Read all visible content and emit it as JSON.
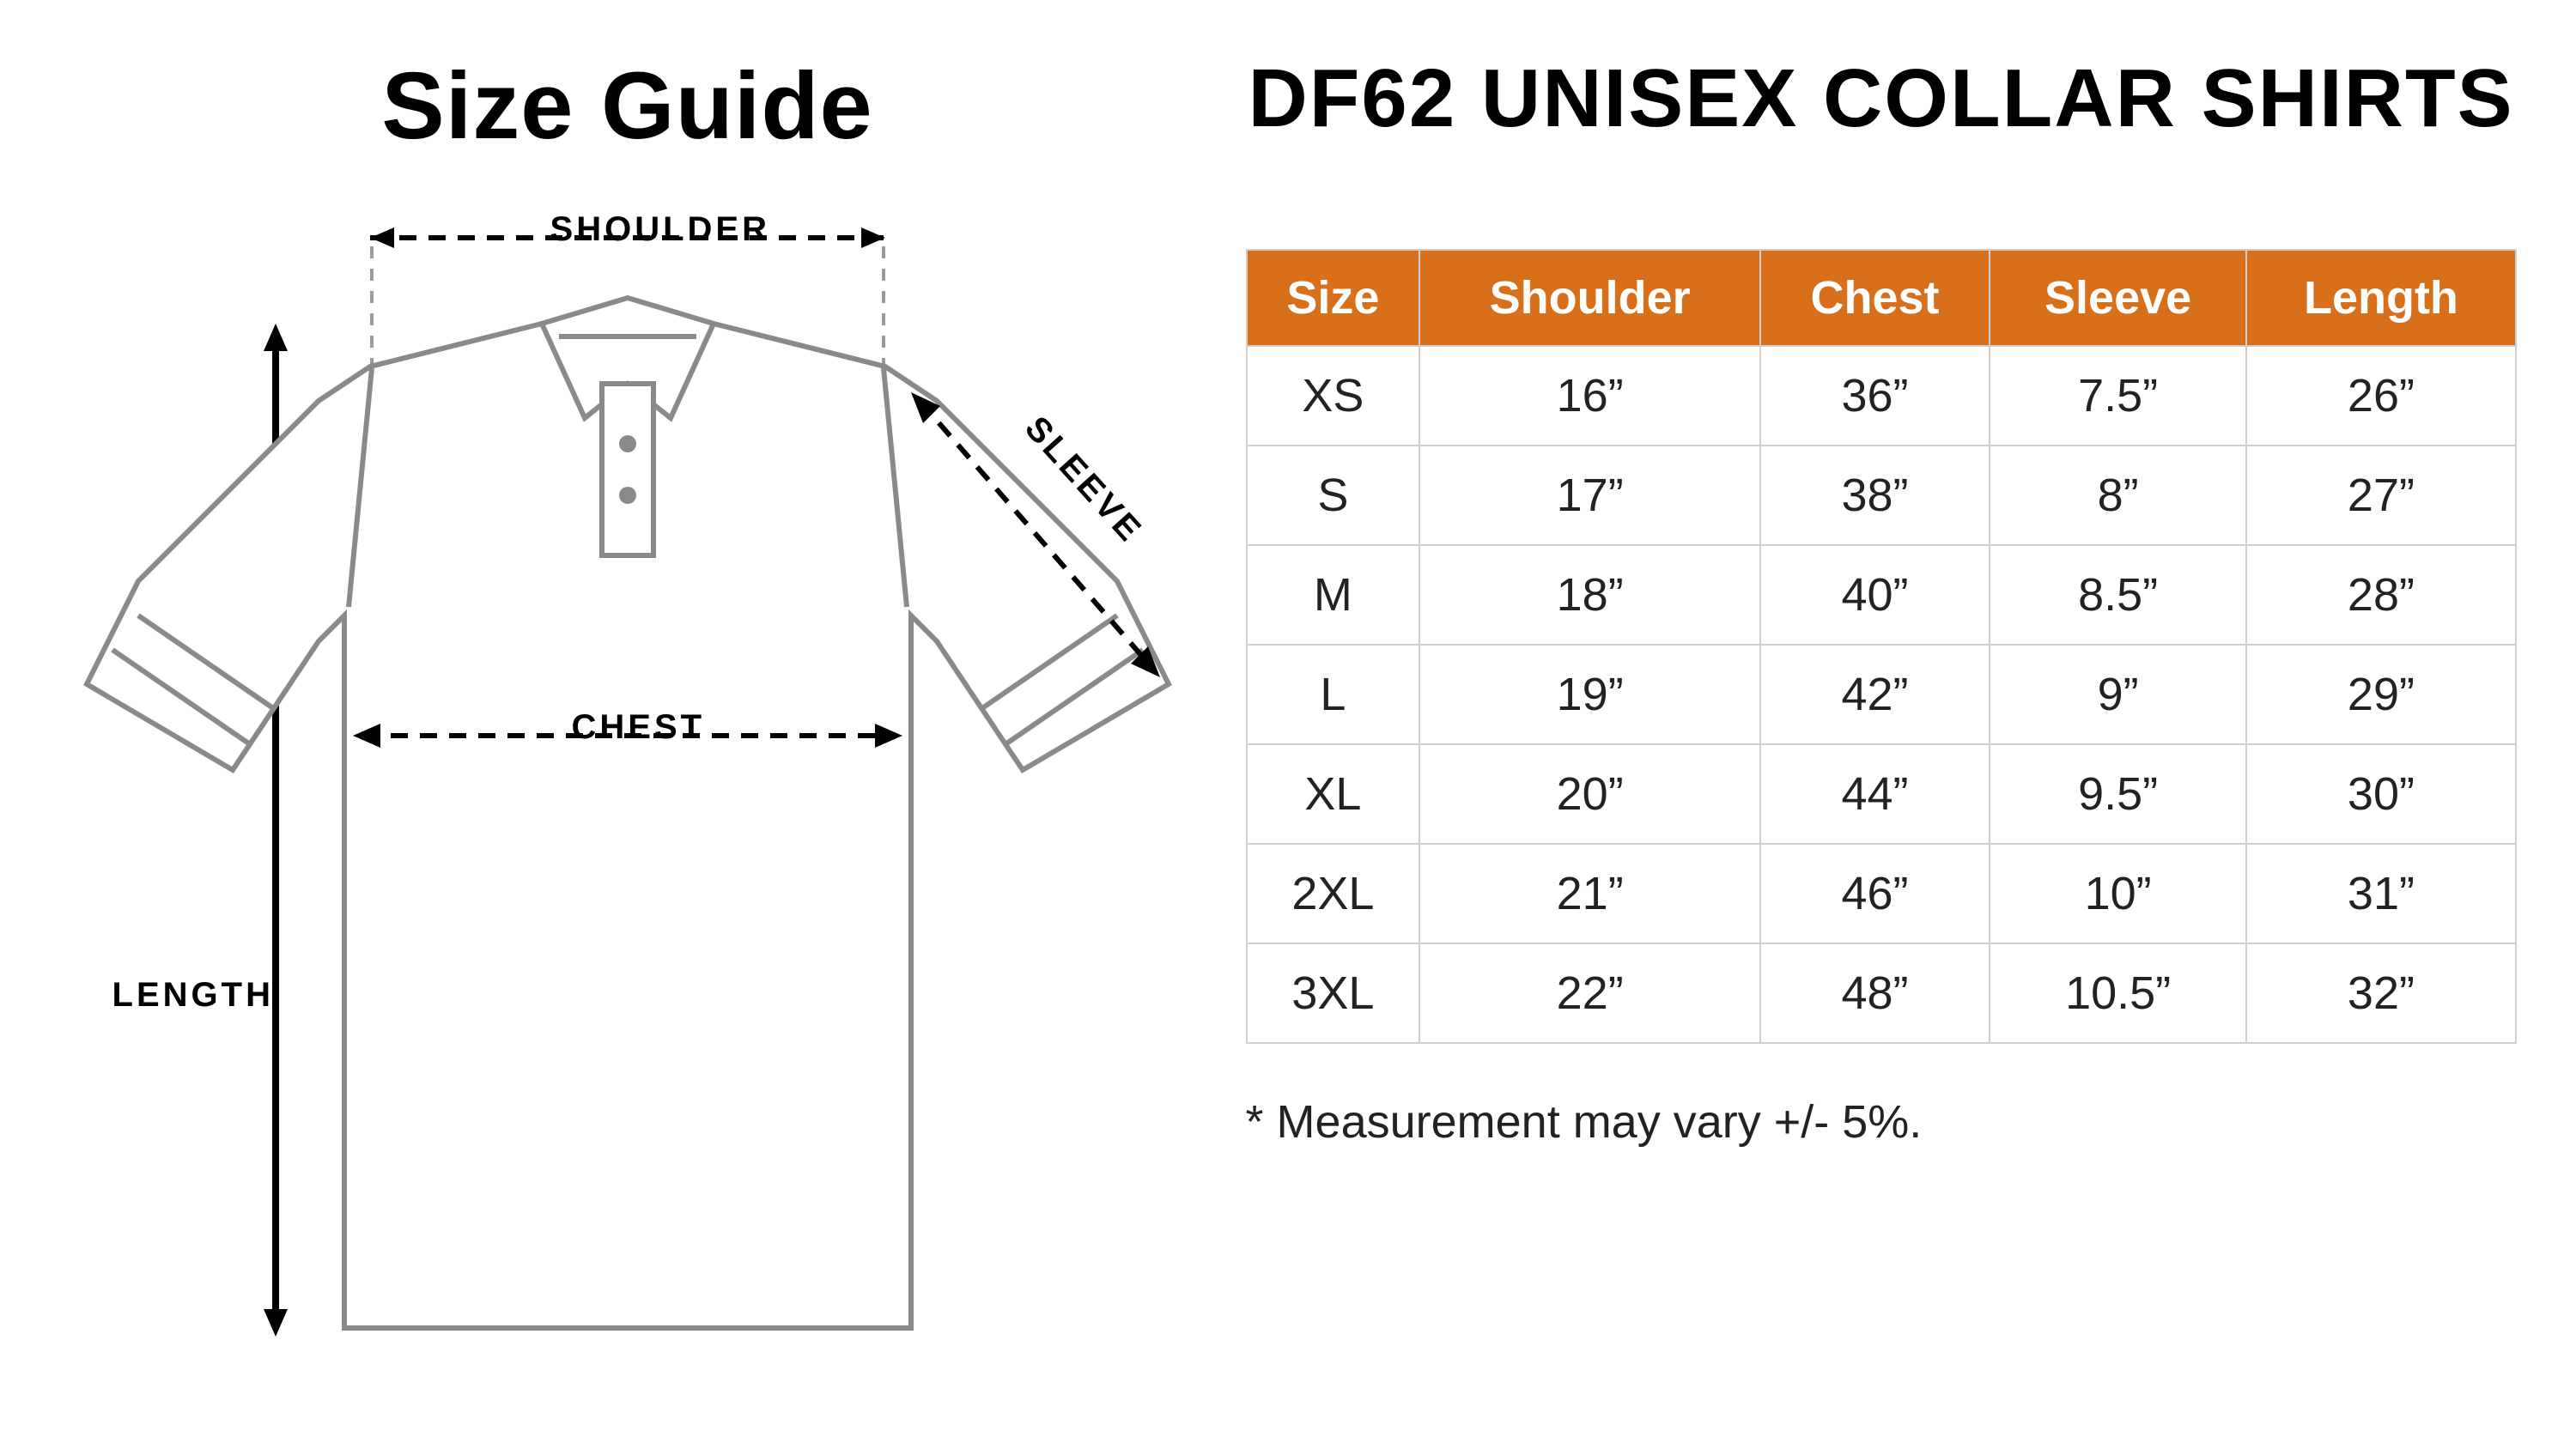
{
  "left": {
    "title": "Size Guide",
    "labels": {
      "shoulder": "SHOULDER",
      "sleeve": "SLEEVE",
      "chest": "CHEST",
      "length": "LENGTH"
    }
  },
  "right": {
    "title": "DF62 UNISEX COLLAR SHIRTS",
    "table": {
      "columns": [
        "Size",
        "Shoulder",
        "Chest",
        "Sleeve",
        "Length"
      ],
      "rows": [
        [
          "XS",
          "16”",
          "36”",
          "7.5”",
          "26”"
        ],
        [
          "S",
          "17”",
          "38”",
          "8”",
          "27”"
        ],
        [
          "M",
          "18”",
          "40”",
          "8.5”",
          "28”"
        ],
        [
          "L",
          "19”",
          "42”",
          "9”",
          "29”"
        ],
        [
          "XL",
          "20”",
          "44”",
          "9.5”",
          "30”"
        ],
        [
          "2XL",
          "21”",
          "46”",
          "10”",
          "31”"
        ],
        [
          "3XL",
          "22”",
          "48”",
          "10.5”",
          "32”"
        ]
      ],
      "header_bg": "#d86f1a",
      "header_fg": "#ffffff",
      "border_color": "#cfcfcf",
      "cell_fontsize": 54
    },
    "footnote": "* Measurement may vary +/- 5%."
  },
  "colors": {
    "background": "#ffffff",
    "text": "#000000",
    "shirt_stroke": "#8a8a8a",
    "dash": "#000000"
  }
}
